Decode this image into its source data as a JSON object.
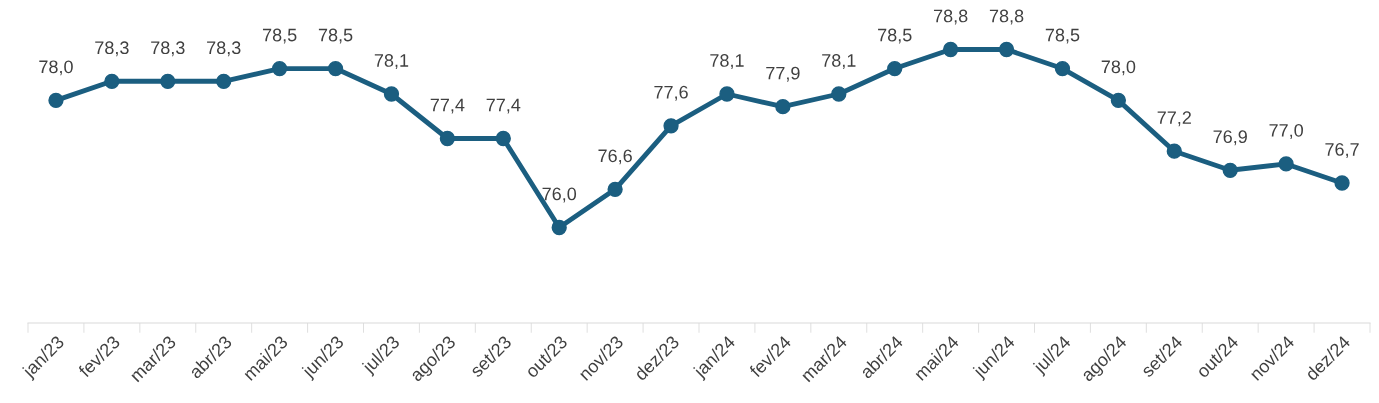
{
  "chart_data": {
    "type": "line",
    "categories": [
      "jan/23",
      "fev/23",
      "mar/23",
      "abr/23",
      "mai/23",
      "jun/23",
      "jul/23",
      "ago/23",
      "set/23",
      "out/23",
      "nov/23",
      "dez/23",
      "jan/24",
      "fev/24",
      "mar/24",
      "abr/24",
      "mai/24",
      "jun/24",
      "jul/24",
      "ago/24",
      "set/24",
      "out/24",
      "nov/24",
      "dez/24"
    ],
    "series": [
      {
        "color": "#1b5e80",
        "values": [
          78.0,
          78.3,
          78.3,
          78.3,
          78.5,
          78.5,
          78.1,
          77.4,
          77.4,
          76.0,
          76.6,
          77.6,
          78.1,
          77.9,
          78.1,
          78.5,
          78.8,
          78.8,
          78.5,
          78.0,
          77.2,
          76.9,
          77.0,
          76.7
        ],
        "value_labels": [
          "78,0",
          "78,3",
          "78,3",
          "78,3",
          "78,5",
          "78,5",
          "78,1",
          "77,4",
          "77,4",
          "76,0",
          "76,6",
          "77,6",
          "78,1",
          "77,9",
          "78,1",
          "78,5",
          "78,8",
          "78,8",
          "78,5",
          "78,0",
          "77,2",
          "76,9",
          "77,0",
          "76,7"
        ]
      }
    ],
    "tick_labels": "x",
    "marker": "circle",
    "line_style": "solid",
    "legend": false
  }
}
